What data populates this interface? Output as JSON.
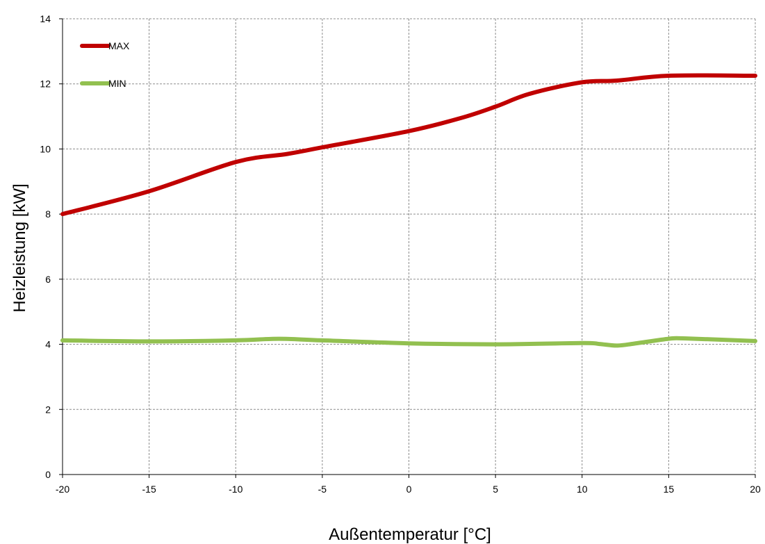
{
  "chart_data": {
    "type": "line",
    "title": "",
    "xlabel": "Außentemperatur [°C]",
    "ylabel": "Heizleistung [kW]",
    "xlim": [
      -20,
      20
    ],
    "ylim": [
      0,
      14
    ],
    "x_ticks": [
      "-20",
      "-15",
      "-10",
      "-5",
      "0",
      "5",
      "10",
      "15",
      "20"
    ],
    "y_ticks": [
      "0",
      "2",
      "4",
      "6",
      "8",
      "10",
      "12",
      "14"
    ],
    "grid": true,
    "legend_position": "top-left",
    "series": [
      {
        "name": "MAX",
        "color": "#c00000",
        "x": [
          -20,
          -15,
          -10,
          -7,
          -5,
          0,
          3,
          5,
          7,
          10,
          12,
          15,
          20
        ],
        "y": [
          8.0,
          8.7,
          9.6,
          9.85,
          10.05,
          10.55,
          10.95,
          11.3,
          11.7,
          12.05,
          12.1,
          12.25,
          12.25
        ]
      },
      {
        "name": "MIN",
        "color": "#92c050",
        "x": [
          -20,
          -15,
          -10,
          -7.5,
          -5,
          0,
          5,
          10,
          11,
          12,
          13,
          15,
          16,
          20
        ],
        "y": [
          4.12,
          4.09,
          4.12,
          4.17,
          4.12,
          4.03,
          4.0,
          4.04,
          4.01,
          3.96,
          4.02,
          4.17,
          4.18,
          4.1
        ]
      }
    ]
  }
}
